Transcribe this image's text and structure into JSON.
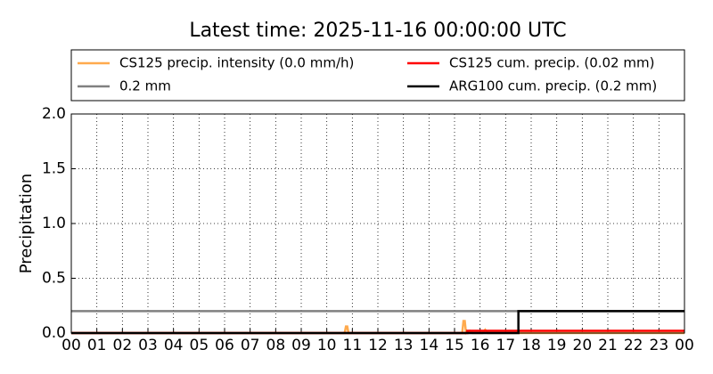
{
  "chart_data": {
    "type": "line",
    "title": "Latest time: 2025-11-16 00:00:00 UTC",
    "y_label": "Precipitation",
    "xlim": [
      0,
      24
    ],
    "xticks": [
      {
        "value": 0,
        "label": "00"
      },
      {
        "value": 1,
        "label": "01"
      },
      {
        "value": 2,
        "label": "02"
      },
      {
        "value": 3,
        "label": "03"
      },
      {
        "value": 4,
        "label": "04"
      },
      {
        "value": 5,
        "label": "05"
      },
      {
        "value": 6,
        "label": "06"
      },
      {
        "value": 7,
        "label": "07"
      },
      {
        "value": 8,
        "label": "08"
      },
      {
        "value": 9,
        "label": "09"
      },
      {
        "value": 10,
        "label": "10"
      },
      {
        "value": 11,
        "label": "11"
      },
      {
        "value": 12,
        "label": "12"
      },
      {
        "value": 13,
        "label": "13"
      },
      {
        "value": 14,
        "label": "14"
      },
      {
        "value": 15,
        "label": "15"
      },
      {
        "value": 16,
        "label": "16"
      },
      {
        "value": 17,
        "label": "17"
      },
      {
        "value": 18,
        "label": "18"
      },
      {
        "value": 19,
        "label": "19"
      },
      {
        "value": 20,
        "label": "20"
      },
      {
        "value": 21,
        "label": "21"
      },
      {
        "value": 22,
        "label": "22"
      },
      {
        "value": 23,
        "label": "23"
      },
      {
        "value": 24,
        "label": "00"
      }
    ],
    "ylim": [
      0,
      2
    ],
    "yticks": [
      {
        "value": 0,
        "label": "0.0"
      },
      0.5,
      {
        "value": 1,
        "label": "1.0"
      },
      1.5,
      {
        "value": 2,
        "label": "2.0"
      }
    ],
    "grid": true,
    "legend": "top",
    "series": [
      {
        "name": "CS125 precip. intensity (0.0 mm/h)",
        "color": "#ffaa4d",
        "x": [
          0,
          10.7,
          10.75,
          10.8,
          10.85,
          15.3,
          15.35,
          15.4,
          15.45,
          15.6,
          15.7,
          16.1,
          16.2,
          16.3,
          24
        ],
        "values": [
          0,
          0,
          0.06,
          0.06,
          0,
          0,
          0.11,
          0.11,
          0,
          0.02,
          0,
          0,
          0.03,
          0,
          0
        ]
      },
      {
        "name": "0.2 mm",
        "color": "#808080",
        "x": [
          0,
          24
        ],
        "values": [
          0.2,
          0.2
        ]
      },
      {
        "name": "CS125 cum. precip. (0.02 mm)",
        "color": "#ff0000",
        "x": [
          0,
          15.5,
          15.5,
          24
        ],
        "values": [
          0,
          0,
          0.02,
          0.02
        ]
      },
      {
        "name": "ARG100 cum. precip. (0.2 mm)",
        "color": "#000000",
        "x": [
          0,
          17.5,
          17.5,
          24
        ],
        "values": [
          0,
          0,
          0.2,
          0.2
        ]
      }
    ]
  }
}
